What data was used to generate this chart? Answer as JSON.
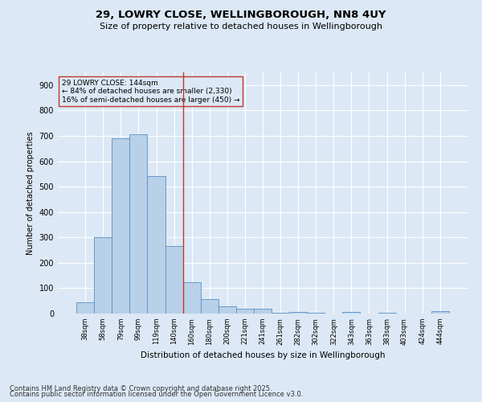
{
  "title1": "29, LOWRY CLOSE, WELLINGBOROUGH, NN8 4UY",
  "title2": "Size of property relative to detached houses in Wellingborough",
  "xlabel": "Distribution of detached houses by size in Wellingborough",
  "ylabel": "Number of detached properties",
  "bar_labels": [
    "38sqm",
    "58sqm",
    "79sqm",
    "99sqm",
    "119sqm",
    "140sqm",
    "160sqm",
    "180sqm",
    "200sqm",
    "221sqm",
    "241sqm",
    "261sqm",
    "282sqm",
    "302sqm",
    "322sqm",
    "343sqm",
    "363sqm",
    "383sqm",
    "403sqm",
    "424sqm",
    "444sqm"
  ],
  "bar_values": [
    45,
    300,
    690,
    705,
    540,
    265,
    125,
    57,
    27,
    18,
    20,
    2,
    5,
    2,
    0,
    5,
    0,
    2,
    0,
    0,
    8
  ],
  "bar_color": "#b8d0e8",
  "bar_edge_color": "#5a8fc2",
  "vline_x": 5.5,
  "vline_color": "#c0392b",
  "annotation_text": "29 LOWRY CLOSE: 144sqm\n← 84% of detached houses are smaller (2,330)\n16% of semi-detached houses are larger (450) →",
  "annotation_box_color": "#c0392b",
  "ylim": [
    0,
    950
  ],
  "yticks": [
    0,
    100,
    200,
    300,
    400,
    500,
    600,
    700,
    800,
    900
  ],
  "bg_color": "#dce8f5",
  "grid_color": "#ffffff",
  "footer1": "Contains HM Land Registry data © Crown copyright and database right 2025.",
  "footer2": "Contains public sector information licensed under the Open Government Licence v3.0."
}
